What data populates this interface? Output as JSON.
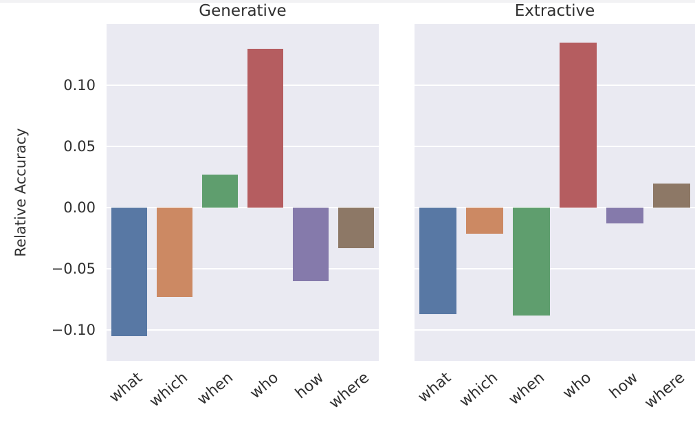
{
  "style": {
    "panel_background": "#eaeaf2",
    "gridline_color": "#ffffff",
    "text_color": "#303030",
    "figure_background": "#ffffff"
  },
  "axis": {
    "ylabel": "Relative Accuracy",
    "ytick_labels": [
      "0.10",
      "0.05",
      "0.00",
      "−0.05",
      "−0.10"
    ],
    "ytick_values": [
      0.1,
      0.05,
      0.0,
      -0.05,
      -0.1
    ]
  },
  "chart_data": [
    {
      "type": "bar",
      "title": "Generative",
      "categories": [
        "what",
        "which",
        "when",
        "who",
        "how",
        "where"
      ],
      "values": [
        -0.105,
        -0.073,
        0.027,
        0.13,
        -0.06,
        -0.033
      ],
      "bar_colors": [
        "#5878a4",
        "#cc8963",
        "#5f9e6e",
        "#b55d60",
        "#857aab",
        "#8d7866"
      ],
      "xlabel": "",
      "ylabel": "Relative Accuracy",
      "ylim": [
        -0.125,
        0.15
      ],
      "yticks": [
        0.1,
        0.05,
        0.0,
        -0.05,
        -0.1
      ],
      "grid": true,
      "legend": "none"
    },
    {
      "type": "bar",
      "title": "Extractive",
      "categories": [
        "what",
        "which",
        "when",
        "who",
        "how",
        "where"
      ],
      "values": [
        -0.087,
        -0.021,
        -0.088,
        0.135,
        -0.013,
        0.02
      ],
      "bar_colors": [
        "#5878a4",
        "#cc8963",
        "#5f9e6e",
        "#b55d60",
        "#857aab",
        "#8d7866"
      ],
      "xlabel": "",
      "ylabel": "",
      "ylim": [
        -0.125,
        0.15
      ],
      "yticks": [
        0.1,
        0.05,
        0.0,
        -0.05,
        -0.1
      ],
      "grid": true,
      "legend": "none"
    }
  ]
}
